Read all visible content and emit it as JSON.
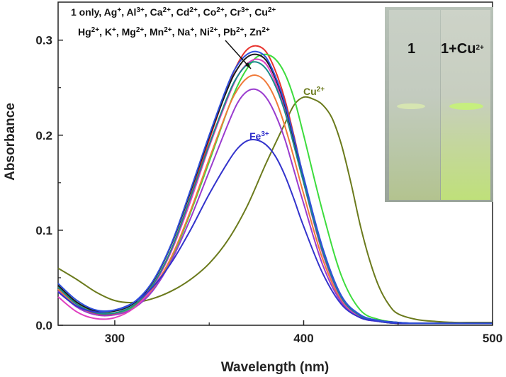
{
  "chart_data": {
    "type": "line",
    "xlabel": "Wavelength (nm)",
    "ylabel": "Absorbance",
    "xlim": [
      270,
      500
    ],
    "ylim": [
      0,
      0.34
    ],
    "x_ticks": [
      "300",
      "400",
      "500"
    ],
    "y_ticks": [
      "0.0",
      "0.1",
      "0.2",
      "0.3"
    ],
    "grid": false,
    "annotations": {
      "main_line1": [
        "1 only, Ag",
        "+",
        ", Al",
        "3+",
        ", Ca",
        "2+",
        ", Cd",
        "2+",
        ", Co",
        "2+",
        ", Cr",
        "3+",
        ", Cu",
        "2+"
      ],
      "main_line2": [
        "Hg",
        "2+",
        ", K",
        "+",
        ", Mg",
        "2+",
        ", Mn",
        "2+",
        ", Na",
        "+",
        ", Ni",
        "2+",
        ", Pb",
        "2+",
        ", Zn",
        "2+"
      ],
      "cu_label": [
        "Cu",
        "2+"
      ],
      "fe_label": [
        "Fe",
        "3+"
      ]
    },
    "inset": {
      "left_label": "1",
      "right_label": [
        "1+Cu",
        "2+"
      ]
    },
    "series": [
      {
        "name": "Cu2+",
        "color": "#6b7a1c",
        "x": [
          270,
          280,
          290,
          300,
          310,
          320,
          330,
          340,
          350,
          360,
          370,
          380,
          390,
          395,
          400,
          405,
          410,
          415,
          420,
          425,
          430,
          435,
          440,
          445,
          450,
          460,
          470,
          480,
          490,
          500
        ],
        "y": [
          0.06,
          0.048,
          0.035,
          0.026,
          0.024,
          0.028,
          0.036,
          0.048,
          0.065,
          0.09,
          0.125,
          0.17,
          0.212,
          0.232,
          0.24,
          0.238,
          0.232,
          0.218,
          0.19,
          0.15,
          0.105,
          0.068,
          0.04,
          0.022,
          0.012,
          0.006,
          0.004,
          0.003,
          0.003,
          0.003
        ]
      },
      {
        "name": "1 only (red)",
        "color": "#e8332e",
        "x": [
          270,
          280,
          290,
          300,
          310,
          320,
          330,
          340,
          350,
          360,
          365,
          370,
          375,
          380,
          385,
          390,
          395,
          400,
          410,
          420,
          430,
          440,
          450,
          460,
          480,
          500
        ],
        "y": [
          0.04,
          0.022,
          0.012,
          0.012,
          0.02,
          0.042,
          0.08,
          0.135,
          0.195,
          0.252,
          0.275,
          0.29,
          0.294,
          0.288,
          0.268,
          0.238,
          0.198,
          0.155,
          0.08,
          0.03,
          0.01,
          0.004,
          0.002,
          0.002,
          0.002,
          0.002
        ]
      },
      {
        "name": "green",
        "color": "#3ddc3d",
        "x": [
          270,
          280,
          290,
          300,
          310,
          320,
          330,
          340,
          350,
          360,
          365,
          370,
          375,
          380,
          385,
          390,
          395,
          400,
          410,
          420,
          430,
          440,
          450,
          460,
          480,
          500
        ],
        "y": [
          0.04,
          0.024,
          0.014,
          0.013,
          0.019,
          0.038,
          0.07,
          0.118,
          0.172,
          0.228,
          0.252,
          0.27,
          0.282,
          0.285,
          0.28,
          0.265,
          0.238,
          0.2,
          0.12,
          0.052,
          0.016,
          0.006,
          0.003,
          0.002,
          0.002,
          0.002
        ]
      },
      {
        "name": "orange",
        "color": "#f07a3a",
        "x": [
          270,
          280,
          290,
          300,
          310,
          320,
          330,
          340,
          350,
          360,
          365,
          370,
          375,
          380,
          385,
          390,
          395,
          400,
          410,
          420,
          430,
          440,
          450,
          460,
          480,
          500
        ],
        "y": [
          0.038,
          0.02,
          0.011,
          0.011,
          0.018,
          0.038,
          0.072,
          0.12,
          0.175,
          0.228,
          0.248,
          0.26,
          0.263,
          0.256,
          0.238,
          0.21,
          0.175,
          0.138,
          0.07,
          0.026,
          0.009,
          0.004,
          0.002,
          0.002,
          0.002,
          0.002
        ]
      },
      {
        "name": "violet",
        "color": "#9a3ccf",
        "x": [
          270,
          280,
          290,
          300,
          310,
          320,
          330,
          340,
          350,
          360,
          365,
          370,
          375,
          380,
          385,
          390,
          395,
          400,
          410,
          420,
          430,
          440,
          450,
          460,
          480,
          500
        ],
        "y": [
          0.036,
          0.019,
          0.011,
          0.011,
          0.018,
          0.036,
          0.068,
          0.112,
          0.162,
          0.212,
          0.234,
          0.246,
          0.248,
          0.24,
          0.222,
          0.196,
          0.162,
          0.128,
          0.064,
          0.024,
          0.008,
          0.004,
          0.002,
          0.002,
          0.002,
          0.002
        ]
      },
      {
        "name": "magenta",
        "color": "#e040c0",
        "x": [
          270,
          280,
          290,
          300,
          310,
          320,
          330,
          340,
          350,
          360,
          365,
          370,
          375,
          380,
          385,
          390,
          395,
          400,
          410,
          420,
          430,
          440,
          450,
          460,
          480,
          500
        ],
        "y": [
          0.03,
          0.014,
          0.007,
          0.008,
          0.018,
          0.04,
          0.078,
          0.13,
          0.188,
          0.24,
          0.262,
          0.275,
          0.28,
          0.275,
          0.256,
          0.228,
          0.19,
          0.15,
          0.076,
          0.028,
          0.009,
          0.004,
          0.002,
          0.002,
          0.002,
          0.002
        ]
      },
      {
        "name": "black",
        "color": "#1a1a1a",
        "x": [
          270,
          280,
          290,
          300,
          310,
          320,
          330,
          340,
          350,
          360,
          365,
          370,
          375,
          380,
          385,
          390,
          395,
          400,
          410,
          420,
          430,
          440,
          450,
          460,
          480,
          500
        ],
        "y": [
          0.042,
          0.024,
          0.015,
          0.015,
          0.023,
          0.045,
          0.085,
          0.14,
          0.198,
          0.25,
          0.27,
          0.282,
          0.285,
          0.279,
          0.26,
          0.232,
          0.194,
          0.154,
          0.08,
          0.03,
          0.01,
          0.005,
          0.003,
          0.002,
          0.002,
          0.002
        ]
      },
      {
        "name": "teal",
        "color": "#1a8a8a",
        "x": [
          270,
          280,
          290,
          300,
          310,
          320,
          330,
          340,
          350,
          360,
          365,
          370,
          375,
          380,
          385,
          390,
          395,
          400,
          410,
          420,
          430,
          440,
          450,
          460,
          480,
          500
        ],
        "y": [
          0.04,
          0.022,
          0.013,
          0.013,
          0.021,
          0.042,
          0.08,
          0.134,
          0.19,
          0.242,
          0.262,
          0.274,
          0.277,
          0.27,
          0.252,
          0.225,
          0.188,
          0.15,
          0.078,
          0.029,
          0.01,
          0.004,
          0.002,
          0.002,
          0.002,
          0.002
        ]
      },
      {
        "name": "Fe3+",
        "color": "#3333cc",
        "x": [
          270,
          280,
          290,
          300,
          310,
          320,
          330,
          340,
          350,
          360,
          365,
          370,
          375,
          380,
          385,
          390,
          395,
          400,
          410,
          420,
          430,
          440,
          450,
          460,
          480,
          500
        ],
        "y": [
          0.035,
          0.02,
          0.014,
          0.016,
          0.024,
          0.04,
          0.066,
          0.1,
          0.138,
          0.172,
          0.186,
          0.194,
          0.195,
          0.19,
          0.178,
          0.158,
          0.132,
          0.104,
          0.055,
          0.022,
          0.008,
          0.004,
          0.002,
          0.002,
          0.002,
          0.002
        ]
      },
      {
        "name": "blue",
        "color": "#2f4fdc",
        "x": [
          270,
          280,
          290,
          300,
          310,
          320,
          330,
          340,
          350,
          360,
          365,
          370,
          375,
          380,
          385,
          390,
          395,
          400,
          410,
          420,
          430,
          440,
          450,
          460,
          480,
          500
        ],
        "y": [
          0.044,
          0.026,
          0.016,
          0.016,
          0.024,
          0.046,
          0.086,
          0.142,
          0.2,
          0.254,
          0.274,
          0.285,
          0.288,
          0.282,
          0.262,
          0.234,
          0.196,
          0.156,
          0.082,
          0.031,
          0.011,
          0.005,
          0.003,
          0.002,
          0.002,
          0.002
        ]
      }
    ]
  }
}
